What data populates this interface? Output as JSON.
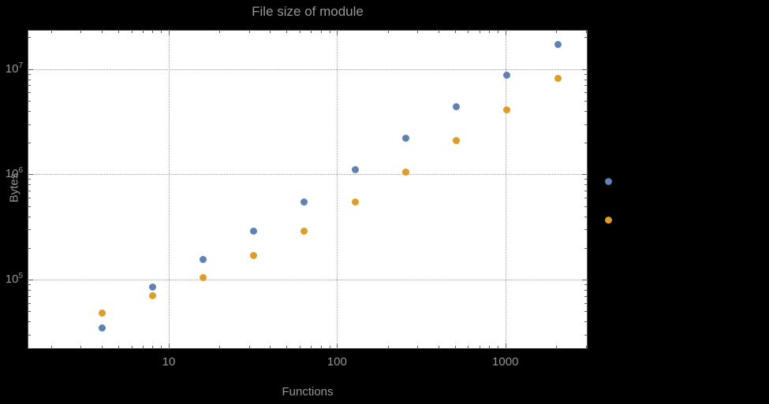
{
  "colors": {
    "page-bg": "#000000",
    "plot-bg": "#ffffff",
    "frame": "#5f5f5f",
    "grid": "#9c9c9c",
    "text": "#969696"
  },
  "chart_data": {
    "type": "scatter",
    "title": "File size of module",
    "xlabel": "Functions",
    "ylabel": "Bytes",
    "x_scale": "log",
    "y_scale": "log",
    "grid": "dotted",
    "legend": "none",
    "xlim": [
      1.45,
      3080
    ],
    "ylim": [
      22000,
      23500000
    ],
    "x": [
      4,
      8,
      16,
      32,
      64,
      128,
      256,
      512,
      1024,
      2048,
      4096
    ],
    "series": [
      {
        "name": "series-1-blue",
        "color": "#5e82b5",
        "values": [
          35000,
          85000,
          155000,
          290000,
          550000,
          1100000,
          2200000,
          4400000,
          8800000,
          17000000,
          850000
        ]
      },
      {
        "name": "series-2-orange",
        "color": "#e09c24",
        "values": [
          48000,
          70000,
          105000,
          170000,
          290000,
          550000,
          1050000,
          2100000,
          4100000,
          8200000,
          370000
        ]
      }
    ],
    "x_ticks": [
      10,
      100,
      1000
    ],
    "x_tick_labels": [
      "10",
      "100",
      "1000"
    ],
    "y_ticks": [
      100000,
      1000000,
      10000000
    ],
    "y_tick_labels": [
      {
        "base": "10",
        "exp": "5"
      },
      {
        "base": "10",
        "exp": "6"
      },
      {
        "base": "10",
        "exp": "7"
      }
    ]
  }
}
